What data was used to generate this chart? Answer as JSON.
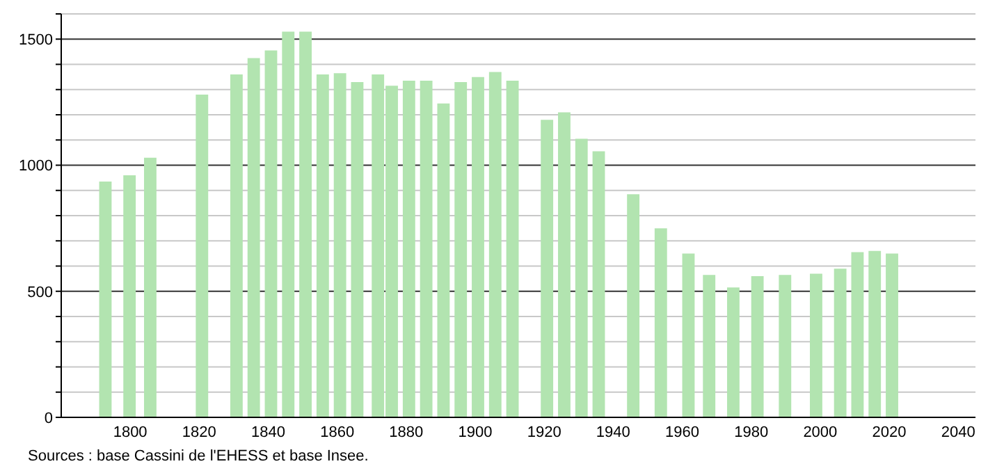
{
  "chart_data": {
    "type": "bar",
    "x": [
      1793,
      1800,
      1806,
      1821,
      1831,
      1836,
      1841,
      1846,
      1851,
      1856,
      1861,
      1866,
      1872,
      1876,
      1881,
      1886,
      1891,
      1896,
      1901,
      1906,
      1911,
      1921,
      1926,
      1931,
      1936,
      1946,
      1954,
      1962,
      1968,
      1975,
      1982,
      1990,
      1999,
      2006,
      2011,
      2016,
      2021
    ],
    "values": [
      935,
      960,
      1030,
      1280,
      1360,
      1425,
      1455,
      1530,
      1530,
      1360,
      1365,
      1330,
      1360,
      1315,
      1335,
      1335,
      1245,
      1330,
      1350,
      1370,
      1335,
      1180,
      1210,
      1105,
      1055,
      885,
      750,
      650,
      565,
      515,
      560,
      565,
      570,
      590,
      655,
      660,
      650
    ],
    "color": "#b2e4b0",
    "xlim": [
      1780,
      2045
    ],
    "xticks": [
      1800,
      1820,
      1840,
      1860,
      1880,
      1900,
      1920,
      1940,
      1960,
      1980,
      2000,
      2020,
      2040
    ],
    "ylim": [
      0,
      1600
    ],
    "yticks": [
      0,
      {
        "value": 100,
        "label": null
      },
      {
        "value": 200,
        "label": null
      },
      {
        "value": 300,
        "label": null
      },
      {
        "value": 400,
        "label": null
      },
      500,
      {
        "value": 600,
        "label": null
      },
      {
        "value": 700,
        "label": null
      },
      {
        "value": 800,
        "label": null
      },
      {
        "value": 900,
        "label": null
      },
      1000,
      {
        "value": 1100,
        "label": null
      },
      {
        "value": 1200,
        "label": null
      },
      {
        "value": 1300,
        "label": null
      },
      {
        "value": 1400,
        "label": null
      },
      1500,
      {
        "value": 1600,
        "label": null
      }
    ],
    "grid": "y",
    "annotations": [
      "Sources : base Cassini de l'EHESS et base Insee."
    ]
  }
}
